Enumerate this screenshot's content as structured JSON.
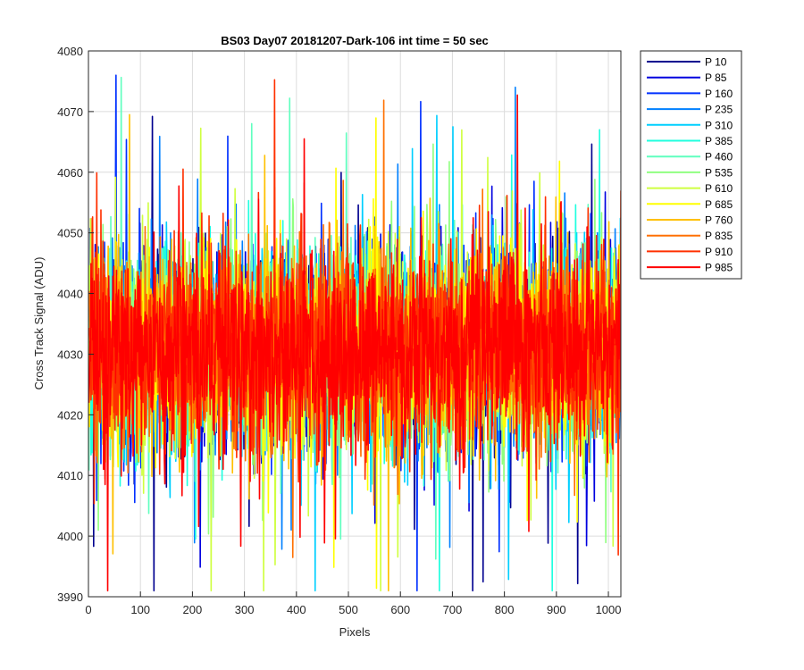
{
  "chart_data": {
    "type": "line",
    "title": "BS03 Day07 20181207-Dark-106 int time = 50 sec",
    "xlabel": "Pixels",
    "ylabel": "Cross Track Signal (ADU)",
    "xlim": [
      0,
      1024
    ],
    "ylim": [
      3990,
      4080
    ],
    "xticks": [
      "0",
      "100",
      "200",
      "300",
      "400",
      "500",
      "600",
      "700",
      "800",
      "900",
      "1000"
    ],
    "yticks": [
      "3990",
      "4000",
      "4010",
      "4020",
      "4030",
      "4040",
      "4050",
      "4060",
      "4070",
      "4080"
    ],
    "grid": true,
    "legend_position": "outside-right",
    "noise_model": {
      "center": 4031,
      "typical_spread": 8,
      "min_observed": 3991,
      "max_observed": 4076,
      "samples_per_series": 1024
    },
    "series": [
      {
        "name": "P 10",
        "color": "#00008f"
      },
      {
        "name": "P 85",
        "color": "#0000df"
      },
      {
        "name": "P 160",
        "color": "#0030ff"
      },
      {
        "name": "P 235",
        "color": "#0080ff"
      },
      {
        "name": "P 310",
        "color": "#00cfff"
      },
      {
        "name": "P 385",
        "color": "#20ffdf"
      },
      {
        "name": "P 460",
        "color": "#60ffbf"
      },
      {
        "name": "P 535",
        "color": "#90ff80"
      },
      {
        "name": "P 610",
        "color": "#cfff40"
      },
      {
        "name": "P 685",
        "color": "#ffff00"
      },
      {
        "name": "P 760",
        "color": "#ffc000"
      },
      {
        "name": "P 835",
        "color": "#ff7000"
      },
      {
        "name": "P 910",
        "color": "#ff3000"
      },
      {
        "name": "P 985",
        "color": "#ff0000"
      }
    ]
  }
}
